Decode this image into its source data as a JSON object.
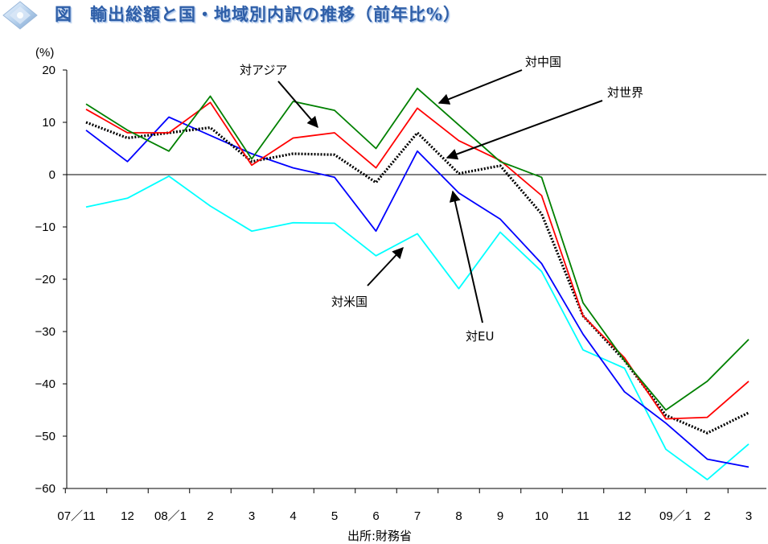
{
  "chart_data": {
    "type": "line",
    "title": "図　輸出総額と国・地域別内訳の推移（前年比%）",
    "ylabel": "(%)",
    "source": "出所:財務省",
    "ylim": [
      -60,
      20
    ],
    "yticks": [
      20,
      10,
      0,
      -10,
      -20,
      -30,
      -40,
      -50,
      -60
    ],
    "categories": [
      "07／11",
      "12",
      "08／1",
      "2",
      "3",
      "4",
      "5",
      "6",
      "7",
      "8",
      "9",
      "10",
      "11",
      "12",
      "09／1",
      "2",
      "3"
    ],
    "colors": {
      "china": "#008000",
      "asia": "#ff0000",
      "world": "#000000",
      "us": "#0000ff",
      "eu": "#00ffff"
    },
    "series": [
      {
        "key": "china",
        "name": "対中国",
        "color": "#008000",
        "style": "solid",
        "values": [
          13.5,
          8.5,
          4.5,
          15,
          3,
          14,
          12.3,
          5,
          16.5,
          9.5,
          2.5,
          -0.5,
          -24.5,
          -35.5,
          -45,
          -39.5,
          -31.5
        ]
      },
      {
        "key": "asia",
        "name": "対アジア",
        "color": "#ff0000",
        "style": "solid",
        "values": [
          12.5,
          8,
          8,
          13.8,
          1.8,
          7,
          8,
          1.3,
          12.7,
          6.5,
          2.7,
          -4,
          -27,
          -35,
          -46.7,
          -46.4,
          -39.5
        ]
      },
      {
        "key": "world",
        "name": "対世界",
        "color": "#000000",
        "style": "dotted",
        "values": [
          10,
          7,
          8,
          9,
          2.5,
          4,
          3.8,
          -1.5,
          8,
          0.2,
          1.7,
          -7.5,
          -27,
          -35.5,
          -46,
          -49.4,
          -45.5
        ]
      },
      {
        "key": "us",
        "name": "対米国",
        "color": "#0000ff",
        "style": "solid",
        "values": [
          8.5,
          2.5,
          11,
          7.5,
          4,
          1.3,
          -0.5,
          -10.8,
          4.5,
          -3.5,
          -8.5,
          -17,
          -30.5,
          -41.5,
          -47.5,
          -54.4,
          -55.9
        ]
      },
      {
        "key": "eu",
        "name": "対EU",
        "color": "#00ffff",
        "style": "solid",
        "values": [
          -6.2,
          -4.5,
          -0.3,
          -6,
          -10.8,
          -9.2,
          -9.3,
          -15.5,
          -11.3,
          -21.8,
          -11,
          -18.5,
          -33.5,
          -37,
          -52.5,
          -58.3,
          -51.5
        ]
      }
    ],
    "annotations": [
      {
        "key": "anno-asia",
        "text": "対アジア",
        "series": "asia"
      },
      {
        "key": "anno-china",
        "text": "対中国",
        "series": "china"
      },
      {
        "key": "anno-world",
        "text": "対世界",
        "series": "world"
      },
      {
        "key": "anno-us",
        "text": "対米国",
        "series": "us"
      },
      {
        "key": "anno-eu",
        "text": "対EU",
        "series": "eu"
      }
    ],
    "grid": false,
    "legend": "none"
  }
}
